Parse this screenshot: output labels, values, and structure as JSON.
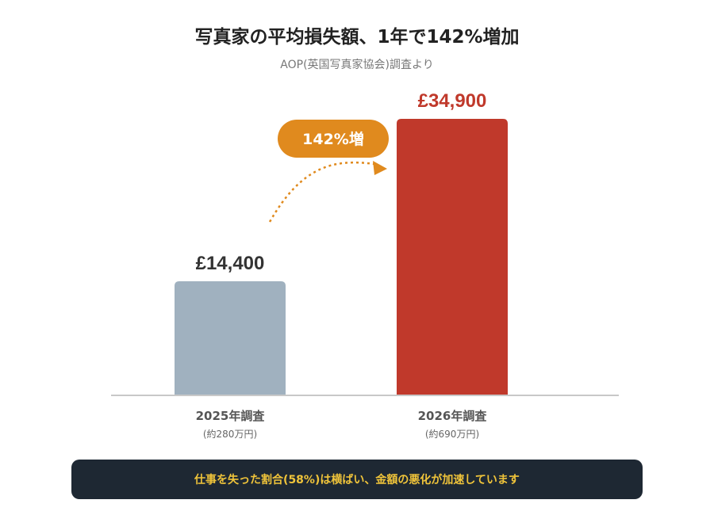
{
  "title": "写真家の平均損失額、1年で142%増加",
  "subtitle": "AOP(英国写真家協会)調査より",
  "chart_data": {
    "type": "bar",
    "categories": [
      "2025年調査",
      "2026年調査"
    ],
    "category_subtitles": [
      "(約280万円)",
      "(約690万円)"
    ],
    "values": [
      14400,
      34900
    ],
    "value_labels": [
      "£14,400",
      "£34,900"
    ],
    "colors": [
      "#a0b1bf",
      "#c0392b"
    ],
    "value_label_colors": [
      "#333333",
      "#c0392b"
    ],
    "ylim": [
      0,
      34900
    ],
    "annotation": {
      "label": "142%増",
      "color": "#e08a1e"
    }
  },
  "footer": {
    "text": "仕事を失った割合(58%)は横ばい、金額の悪化が加速しています"
  }
}
